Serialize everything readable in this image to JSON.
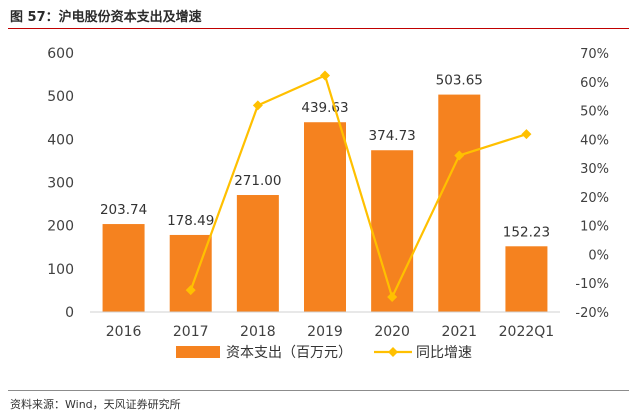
{
  "header": {
    "title": "图 57：沪电股份资本支出及增速",
    "source": "资料来源：Wind，天风证券研究所"
  },
  "chart_data": {
    "type": "bar",
    "categories": [
      "2016",
      "2017",
      "2018",
      "2019",
      "2020",
      "2021",
      "2022Q1"
    ],
    "series": [
      {
        "name": "资本支出（百万元）",
        "type": "bar",
        "axis": "left",
        "values": [
          203.74,
          178.49,
          271.0,
          439.63,
          374.73,
          503.65,
          152.23
        ],
        "labels": [
          "203.74",
          "178.49",
          "271.00",
          "439.63",
          "374.73",
          "503.65",
          "152.23"
        ],
        "color": "#F5821F"
      },
      {
        "name": "同比增速",
        "type": "line",
        "axis": "right",
        "values": [
          null,
          -12.4,
          51.8,
          62.2,
          -14.8,
          34.4,
          41.8
        ],
        "color": "#FFC000"
      }
    ],
    "ylim": [
      0,
      600
    ],
    "yticks": [
      "0",
      "100",
      "200",
      "300",
      "400",
      "500",
      "600"
    ],
    "y2lim": [
      -20,
      70
    ],
    "y2ticks": [
      "-20%",
      "-10%",
      "0%",
      "10%",
      "20%",
      "30%",
      "40%",
      "50%",
      "60%",
      "70%"
    ],
    "legend_position": "bottom",
    "grid": false
  }
}
